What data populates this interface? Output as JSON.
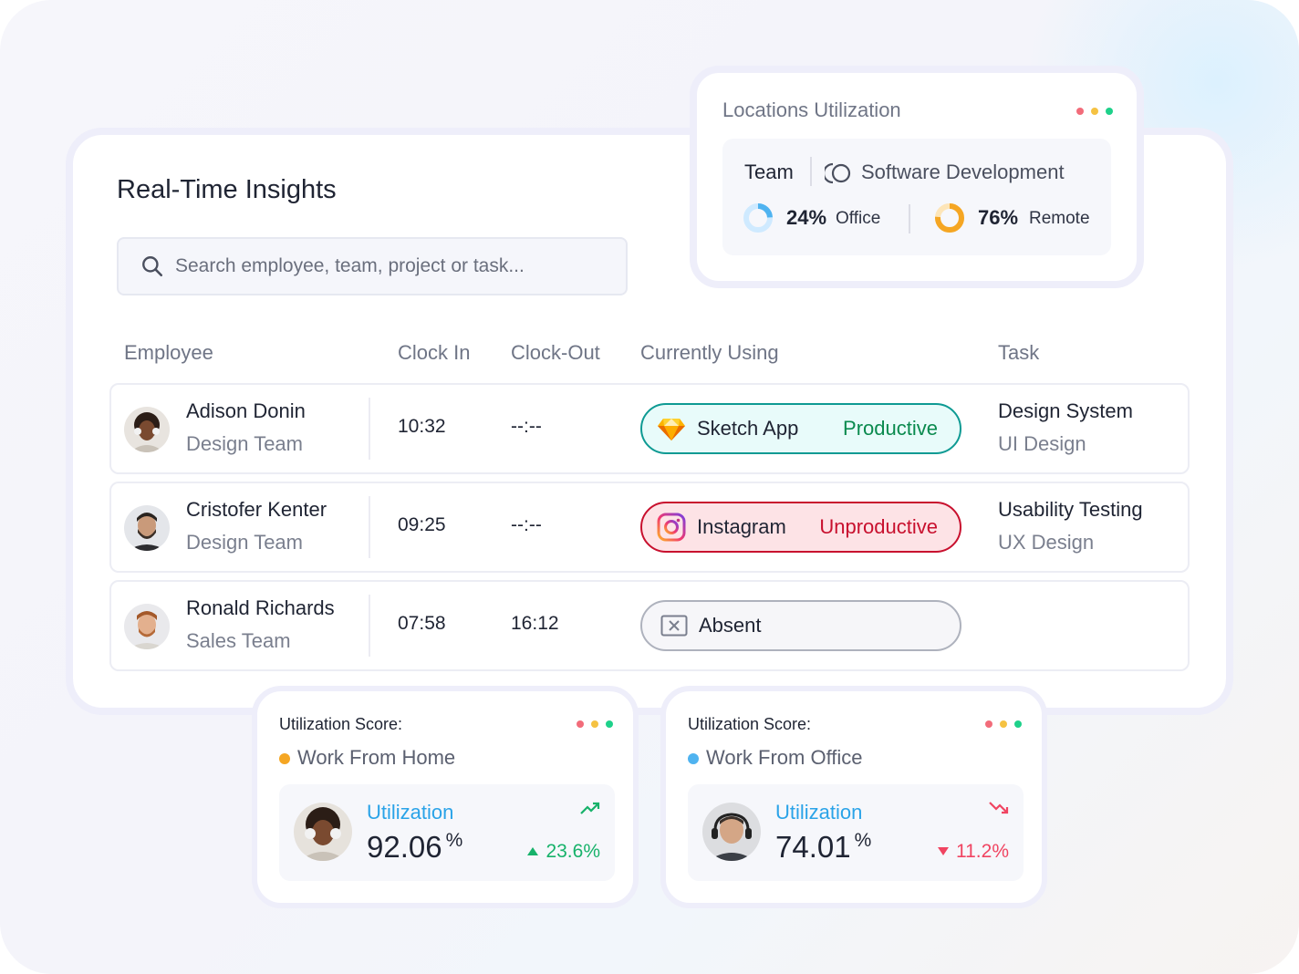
{
  "main": {
    "title": "Real-Time Insights",
    "search_placeholder": "Search employee, team, project or task...",
    "columns": [
      "Employee",
      "Clock In",
      "Clock-Out",
      "Currently Using",
      "Task"
    ],
    "rows": [
      {
        "name": "Adison Donin",
        "team": "Design Team",
        "clock_in": "10:32",
        "clock_out": "--:--",
        "app_icon": "sketch-icon",
        "app": "Sketch App",
        "status": "Productive",
        "task": "Design System",
        "task_sub": "UI Design"
      },
      {
        "name": "Cristofer Kenter",
        "team": "Design Team",
        "clock_in": "09:25",
        "clock_out": "--:--",
        "app_icon": "instagram-icon",
        "app": "Instagram",
        "status": "Unproductive",
        "task": "Usability Testing",
        "task_sub": "UX Design"
      },
      {
        "name": "Ronald Richards",
        "team": "Sales Team",
        "clock_in": "07:58",
        "clock_out": "16:12",
        "app_icon": "absent-icon",
        "app": "Absent",
        "status": "",
        "task": "",
        "task_sub": ""
      }
    ]
  },
  "locations": {
    "title": "Locations Utilization",
    "team_label": "Team",
    "team_name": "Software Development",
    "office_pct": "24%",
    "office_label": "Office",
    "office_fraction": 0.24,
    "remote_pct": "76%",
    "remote_label": "Remote",
    "remote_fraction": 0.76
  },
  "util_cards": [
    {
      "title": "Utilization Score:",
      "subtitle": "Work From Home",
      "label": "Utilization",
      "value": "92.06",
      "unit": "%",
      "change": "23.6%",
      "trend": "up",
      "bullet_color": "#f5a623"
    },
    {
      "title": "Utilization Score:",
      "subtitle": "Work From Office",
      "label": "Utilization",
      "value": "74.01",
      "unit": "%",
      "change": "11.2%",
      "trend": "down",
      "bullet_color": "#4fb3f0"
    }
  ],
  "colors": {
    "productive": "#0a8a4e",
    "unproductive": "#c8102e",
    "accent": "#2aa3e8",
    "dot_red": "#f26c7a",
    "dot_yellow": "#f5c242",
    "dot_green": "#1ed18a"
  }
}
